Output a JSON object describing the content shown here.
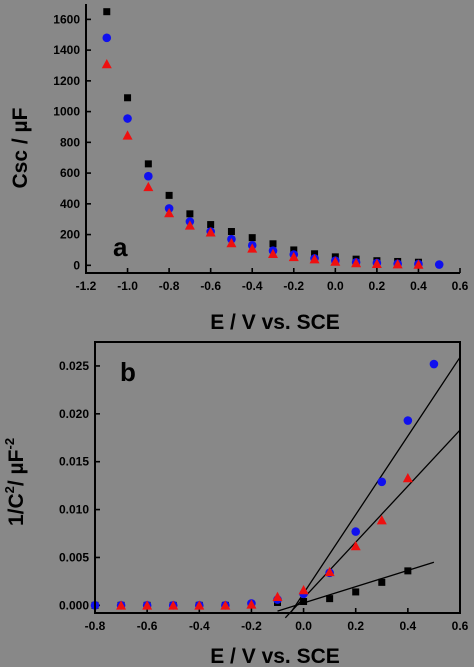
{
  "figure": {
    "background": "#888888",
    "series_colors": {
      "square": "#000000",
      "circle": "#1010ee",
      "triangle": "#ee1010"
    }
  },
  "chart_data": [
    {
      "type": "scatter",
      "panel_label": "a",
      "xlabel": "E / V vs. SCE",
      "ylabel": "Csc / µF",
      "xlim": [
        -1.2,
        0.6
      ],
      "ylim": [
        -50,
        1700
      ],
      "x_ticks": [
        -1.2,
        -1.0,
        -0.8,
        -0.6,
        -0.4,
        -0.2,
        0.0,
        0.2,
        0.4,
        0.6
      ],
      "x_tick_labels": [
        "-1.2",
        "-1.0",
        "-0.8",
        "-0.6",
        "-0.4",
        "-0.2",
        "0.0",
        "0.2",
        "0.4",
        "0.6"
      ],
      "y_ticks": [
        0,
        200,
        400,
        600,
        800,
        1000,
        1200,
        1400,
        1600
      ],
      "y_tick_labels": [
        "0",
        "200",
        "400",
        "600",
        "800",
        "1000",
        "1200",
        "1400",
        "1600"
      ],
      "grid": false,
      "legend": "none",
      "series": [
        {
          "marker": "square",
          "color": "#000000",
          "x": [
            -1.1,
            -1.0,
            -0.9,
            -0.8,
            -0.7,
            -0.6,
            -0.5,
            -0.4,
            -0.3,
            -0.2,
            -0.1,
            0.0,
            0.1,
            0.2,
            0.3,
            0.4
          ],
          "y": [
            1650,
            1090,
            660,
            455,
            335,
            265,
            220,
            180,
            140,
            100,
            75,
            55,
            40,
            30,
            25,
            20
          ]
        },
        {
          "marker": "circle",
          "color": "#1010ee",
          "x": [
            -1.1,
            -1.0,
            -0.9,
            -0.8,
            -0.7,
            -0.6,
            -0.5,
            -0.4,
            -0.3,
            -0.2,
            -0.1,
            0.0,
            0.1,
            0.2,
            0.3,
            0.4,
            0.5
          ],
          "y": [
            1480,
            955,
            580,
            370,
            285,
            220,
            170,
            130,
            95,
            70,
            45,
            30,
            20,
            15,
            10,
            8,
            5
          ]
        },
        {
          "marker": "triangle",
          "color": "#ee1010",
          "x": [
            -1.1,
            -1.0,
            -0.9,
            -0.8,
            -0.7,
            -0.6,
            -0.5,
            -0.4,
            -0.3,
            -0.2,
            -0.1,
            0.0,
            0.1,
            0.2,
            0.3,
            0.4
          ],
          "y": [
            1310,
            845,
            510,
            340,
            260,
            215,
            145,
            110,
            75,
            55,
            40,
            25,
            15,
            10,
            8,
            5
          ]
        }
      ]
    },
    {
      "type": "scatter",
      "panel_label": "b",
      "xlabel": "E / V vs. SCE",
      "ylabel_main": "1/C",
      "ylabel_sup1": "2",
      "ylabel_mid": "/ µF",
      "ylabel_sup2": "-2",
      "xlim": [
        -0.8,
        0.6
      ],
      "ylim": [
        -0.0008,
        0.0275
      ],
      "x_ticks": [
        -0.8,
        -0.6,
        -0.4,
        -0.2,
        0.0,
        0.2,
        0.4,
        0.6
      ],
      "x_tick_labels": [
        "-0.8",
        "-0.6",
        "-0.4",
        "-0.2",
        "0.0",
        "0.2",
        "0.4",
        "0.6"
      ],
      "y_ticks": [
        0.0,
        0.005,
        0.01,
        0.015,
        0.02,
        0.025
      ],
      "y_tick_labels": [
        "0.000",
        "0.005",
        "0.010",
        "0.015",
        "0.020",
        "0.025"
      ],
      "grid": false,
      "legend": "none",
      "series": [
        {
          "marker": "square",
          "color": "#000000",
          "x": [
            -0.8,
            -0.7,
            -0.6,
            -0.5,
            -0.4,
            -0.3,
            -0.2,
            -0.1,
            0.0,
            0.1,
            0.2,
            0.3,
            0.4
          ],
          "y": [
            0.0,
            0.0,
            0.0,
            0.0,
            0.0,
            0.0,
            0.0001,
            0.0003,
            0.0004,
            0.0007,
            0.0014,
            0.0024,
            0.0036
          ]
        },
        {
          "marker": "circle",
          "color": "#1010ee",
          "x": [
            -0.8,
            -0.7,
            -0.6,
            -0.5,
            -0.4,
            -0.3,
            -0.2,
            -0.1,
            0.0,
            0.1,
            0.2,
            0.3,
            0.4,
            0.5
          ],
          "y": [
            0.0,
            0.0,
            0.0,
            0.0,
            0.0,
            0.0,
            0.0002,
            0.0006,
            0.0012,
            0.0034,
            0.0077,
            0.0129,
            0.0193,
            0.0252
          ]
        },
        {
          "marker": "triangle",
          "color": "#ee1010",
          "x": [
            -0.7,
            -0.6,
            -0.5,
            -0.4,
            -0.3,
            -0.2,
            -0.1,
            0.0,
            0.1,
            0.2,
            0.3,
            0.4
          ],
          "y": [
            0.0,
            0.0,
            0.0,
            0.0,
            0.0,
            0.0001,
            0.0009,
            0.0016,
            0.0035,
            0.0062,
            0.0089,
            0.0133
          ]
        }
      ],
      "fit_lines": [
        {
          "x": [
            -0.1,
            0.5
          ],
          "y": [
            -0.0006,
            0.0045
          ]
        },
        {
          "x": [
            -0.05,
            0.6
          ],
          "y": [
            -0.0008,
            0.0259
          ]
        },
        {
          "x": [
            -0.07,
            0.6
          ],
          "y": [
            -0.0013,
            0.0183
          ]
        }
      ]
    }
  ]
}
